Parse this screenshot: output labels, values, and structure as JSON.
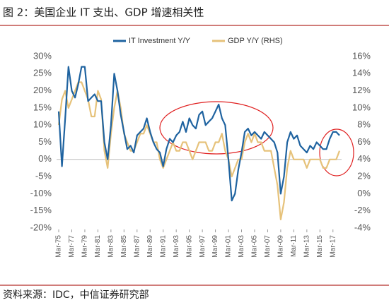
{
  "chart_data": {
    "type": "line",
    "title": "图 2：美国企业 IT 支出、GDP 增速相关性",
    "source": "资料来源：IDC，中信证券研究部",
    "categories": [
      "Mar-75",
      null,
      null,
      null,
      "Mar-77",
      null,
      null,
      null,
      "Mar-79",
      null,
      null,
      null,
      "Mar-81",
      null,
      null,
      null,
      "Mar-83",
      null,
      null,
      null,
      "Mar-85",
      null,
      null,
      null,
      "Mar-87",
      null,
      null,
      null,
      "Mar-89",
      null,
      null,
      null,
      "Mar-91",
      null,
      null,
      null,
      "Mar-93",
      null,
      null,
      null,
      "Mar-95",
      null,
      null,
      null,
      "Mar-97",
      null,
      null,
      null,
      "Mar-99",
      null,
      null,
      null,
      "Mar-01",
      null,
      null,
      null,
      "Mar-03",
      null,
      null,
      null,
      "Mar-05",
      null,
      null,
      null,
      "Mar-07",
      null,
      null,
      null,
      "Mar-09",
      null,
      null,
      null,
      "Mar-11",
      null,
      null,
      null,
      "Mar-13",
      null,
      null,
      null,
      "Mar-15",
      null,
      null,
      null,
      "Mar-17",
      null,
      null
    ],
    "series": [
      {
        "name": "IT Investment Y/Y",
        "color": "#1f63a0",
        "axis": "y",
        "values": [
          14,
          -2,
          12,
          27,
          20,
          18,
          22,
          27,
          27,
          17,
          18,
          19,
          17,
          17,
          5,
          0,
          10,
          25,
          20,
          13,
          8,
          3,
          4,
          2,
          7,
          8,
          9,
          12,
          8,
          5,
          3,
          2,
          -2,
          3,
          6,
          5,
          7,
          8,
          11,
          8,
          12,
          10,
          9,
          13,
          14,
          10,
          11,
          12,
          14,
          16,
          12,
          10,
          0,
          -12,
          -10,
          -3,
          2,
          8,
          9,
          7,
          8,
          7,
          6,
          8,
          7,
          6,
          5,
          2,
          -10,
          -5,
          5,
          8,
          6,
          7,
          4,
          3,
          2,
          4,
          3,
          5,
          4,
          3,
          3,
          6,
          8,
          8,
          7
        ]
      },
      {
        "name": "GDP Y/Y (RHS)",
        "color": "#e6c27a",
        "axis": "y2",
        "values": [
          8,
          11,
          12,
          10,
          11,
          12,
          13,
          13,
          12,
          11,
          9,
          9,
          12,
          11,
          5,
          3,
          7,
          10,
          12,
          10,
          7,
          6,
          5,
          5,
          6,
          7,
          7,
          8,
          7,
          6,
          6,
          4,
          3,
          4,
          5,
          6,
          5,
          5,
          6,
          6,
          5,
          4,
          5,
          6,
          6,
          6,
          5,
          5,
          6,
          6,
          7,
          5,
          4,
          2,
          3,
          4,
          4,
          6,
          7,
          6,
          7,
          6,
          6,
          5,
          5,
          5,
          3,
          1,
          -3,
          -1,
          3,
          5,
          4,
          4,
          4,
          4,
          3,
          4,
          4,
          4,
          4,
          3,
          3,
          4,
          4,
          4,
          5
        ]
      }
    ],
    "ylim": [
      -20,
      30
    ],
    "yticks": [
      {
        "value": -20,
        "label": "-20%"
      },
      {
        "value": -15,
        "label": "-15%"
      },
      {
        "value": -10,
        "label": "-10%"
      },
      {
        "value": -5,
        "label": "-5%"
      },
      {
        "value": 0,
        "label": "0%"
      },
      {
        "value": 5,
        "label": "5%"
      },
      {
        "value": 10,
        "label": "10%"
      },
      {
        "value": 15,
        "label": "15%"
      },
      {
        "value": 20,
        "label": "20%"
      },
      {
        "value": 25,
        "label": "25%"
      },
      {
        "value": 30,
        "label": "30%"
      }
    ],
    "y2lim": [
      -4,
      16
    ],
    "y2ticks": [
      {
        "value": -4,
        "label": "-4%"
      },
      {
        "value": -2,
        "label": "-2%"
      },
      {
        "value": 0,
        "label": "0%"
      },
      {
        "value": 2,
        "label": "2%"
      },
      {
        "value": 4,
        "label": "4%"
      },
      {
        "value": 6,
        "label": "6%"
      },
      {
        "value": 8,
        "label": "8%"
      },
      {
        "value": 10,
        "label": "10%"
      },
      {
        "value": 12,
        "label": "12%"
      },
      {
        "value": 14,
        "label": "14%"
      },
      {
        "value": 16,
        "label": "16%"
      }
    ],
    "grid": false
  }
}
